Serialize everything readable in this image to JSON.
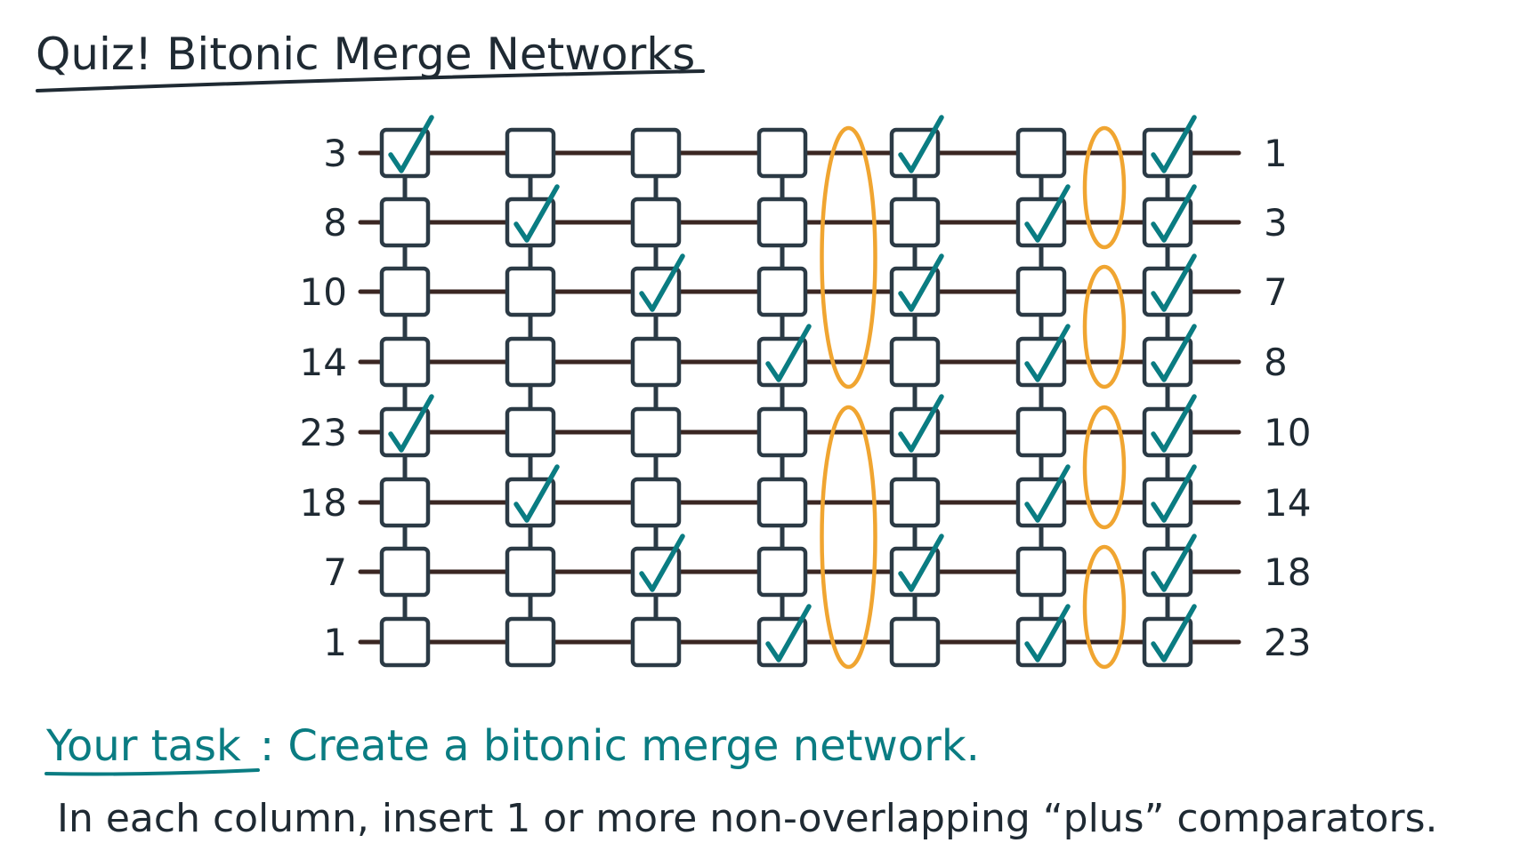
{
  "title": "Quiz! Bitonic Merge Networks",
  "inputs": [
    "3",
    "8",
    "10",
    "14",
    "23",
    "18",
    "7",
    "1"
  ],
  "outputs": [
    "1",
    "3",
    "7",
    "8",
    "10",
    "14",
    "18",
    "23"
  ],
  "columns": 7,
  "checked": [
    [
      0,
      4
    ],
    [
      1,
      5
    ],
    [
      2,
      6
    ],
    [
      3,
      7
    ],
    [
      0,
      2,
      4,
      6
    ],
    [
      1,
      3,
      5,
      7
    ],
    [
      0,
      1,
      2,
      3,
      4,
      5,
      6,
      7
    ]
  ],
  "loops": [
    {
      "after_column": 3,
      "rows": [
        0,
        3
      ]
    },
    {
      "after_column": 3,
      "rows": [
        4,
        7
      ]
    },
    {
      "after_column": 5,
      "rows": [
        0,
        1
      ]
    },
    {
      "after_column": 5,
      "rows": [
        2,
        3
      ]
    },
    {
      "after_column": 5,
      "rows": [
        4,
        5
      ]
    },
    {
      "after_column": 5,
      "rows": [
        6,
        7
      ]
    }
  ],
  "task": {
    "label": "Your task",
    "text": ": Create a bitonic merge network."
  },
  "instruction": "In each column, insert 1 or more non-overlapping “plus” comparators.",
  "colors": {
    "wire": "#3a2622",
    "box": "#2b3a45",
    "check": "#0a7c82",
    "loop": "#f0a531",
    "ink": "#1f2a33"
  }
}
